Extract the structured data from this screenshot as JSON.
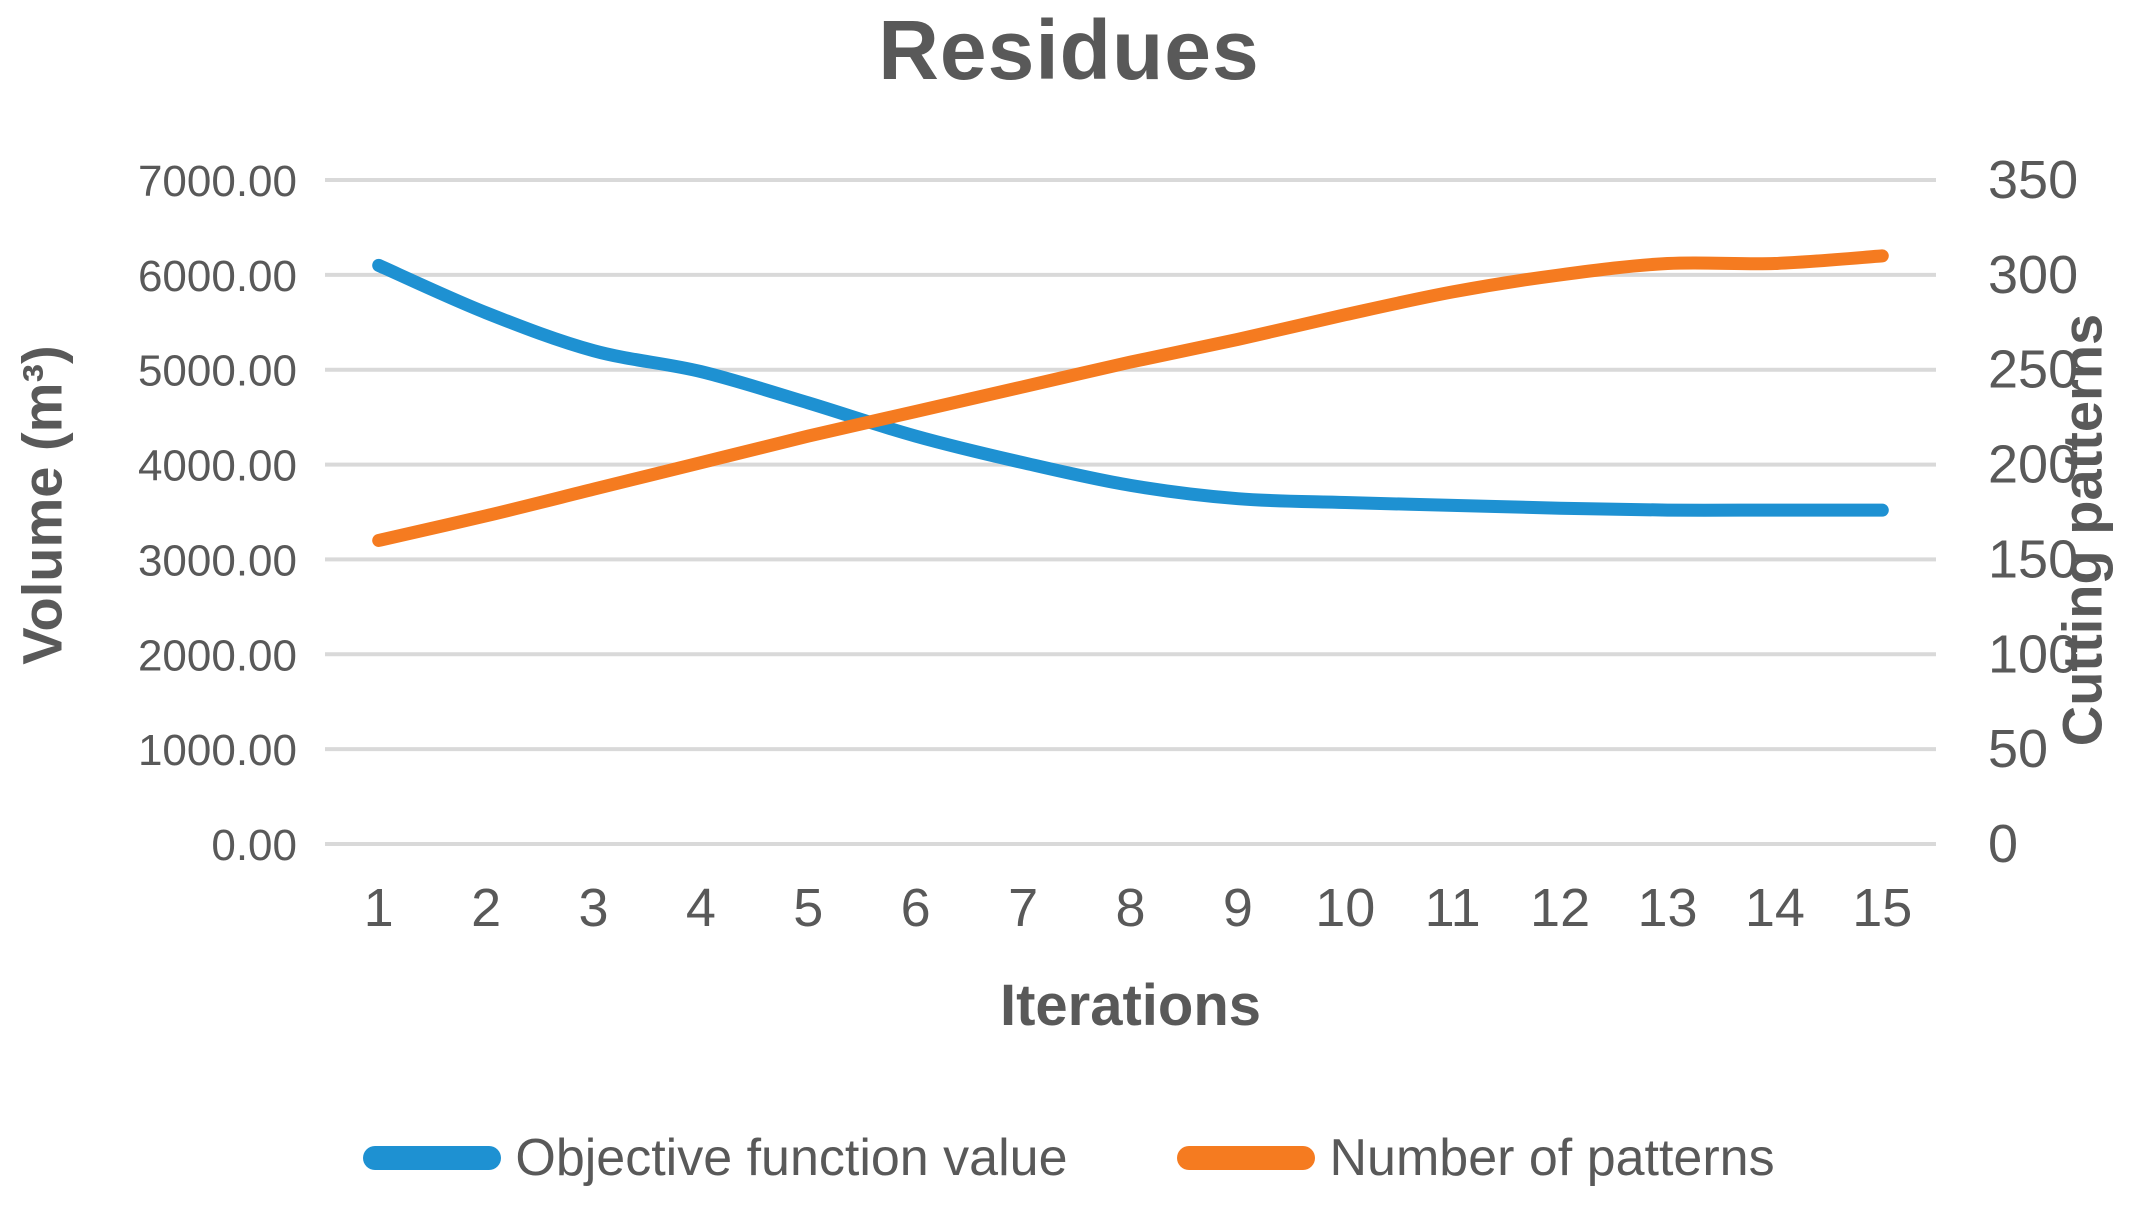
{
  "title": "Residues",
  "colors": {
    "series_blue": "#1E91D2",
    "series_orange": "#F57B20",
    "gridline": "#D9D9D9",
    "text": "#595959",
    "background": "#FFFFFF"
  },
  "chart_data": {
    "type": "line",
    "title": "Residues",
    "xlabel": "Iterations",
    "categories": [
      "1",
      "2",
      "3",
      "4",
      "5",
      "6",
      "7",
      "8",
      "9",
      "10",
      "11",
      "12",
      "13",
      "14",
      "15"
    ],
    "y_left": {
      "label": "Volume (m³)",
      "min": 0,
      "max": 7000,
      "tick_step": 1000,
      "tick_labels": [
        "0.00",
        "1000.00",
        "2000.00",
        "3000.00",
        "4000.00",
        "5000.00",
        "6000.00",
        "7000.00"
      ]
    },
    "y_right": {
      "label": "Cutting patterns",
      "min": 0,
      "max": 350,
      "tick_step": 50,
      "tick_labels": [
        "0",
        "50",
        "100",
        "150",
        "200",
        "250",
        "300",
        "350"
      ]
    },
    "series": [
      {
        "name": "Objective function value",
        "axis": "left",
        "color": "#1E91D2",
        "values": [
          6100,
          5600,
          5200,
          4980,
          4650,
          4300,
          4020,
          3780,
          3640,
          3600,
          3570,
          3540,
          3520,
          3520,
          3520
        ]
      },
      {
        "name": "Number of patterns",
        "axis": "right",
        "color": "#F57B20",
        "values": [
          160,
          173,
          187,
          201,
          215,
          228,
          241,
          254,
          266,
          279,
          291,
          300,
          306,
          306,
          310
        ]
      }
    ],
    "grid": true,
    "line_style": "smooth",
    "legend_position": "bottom"
  }
}
